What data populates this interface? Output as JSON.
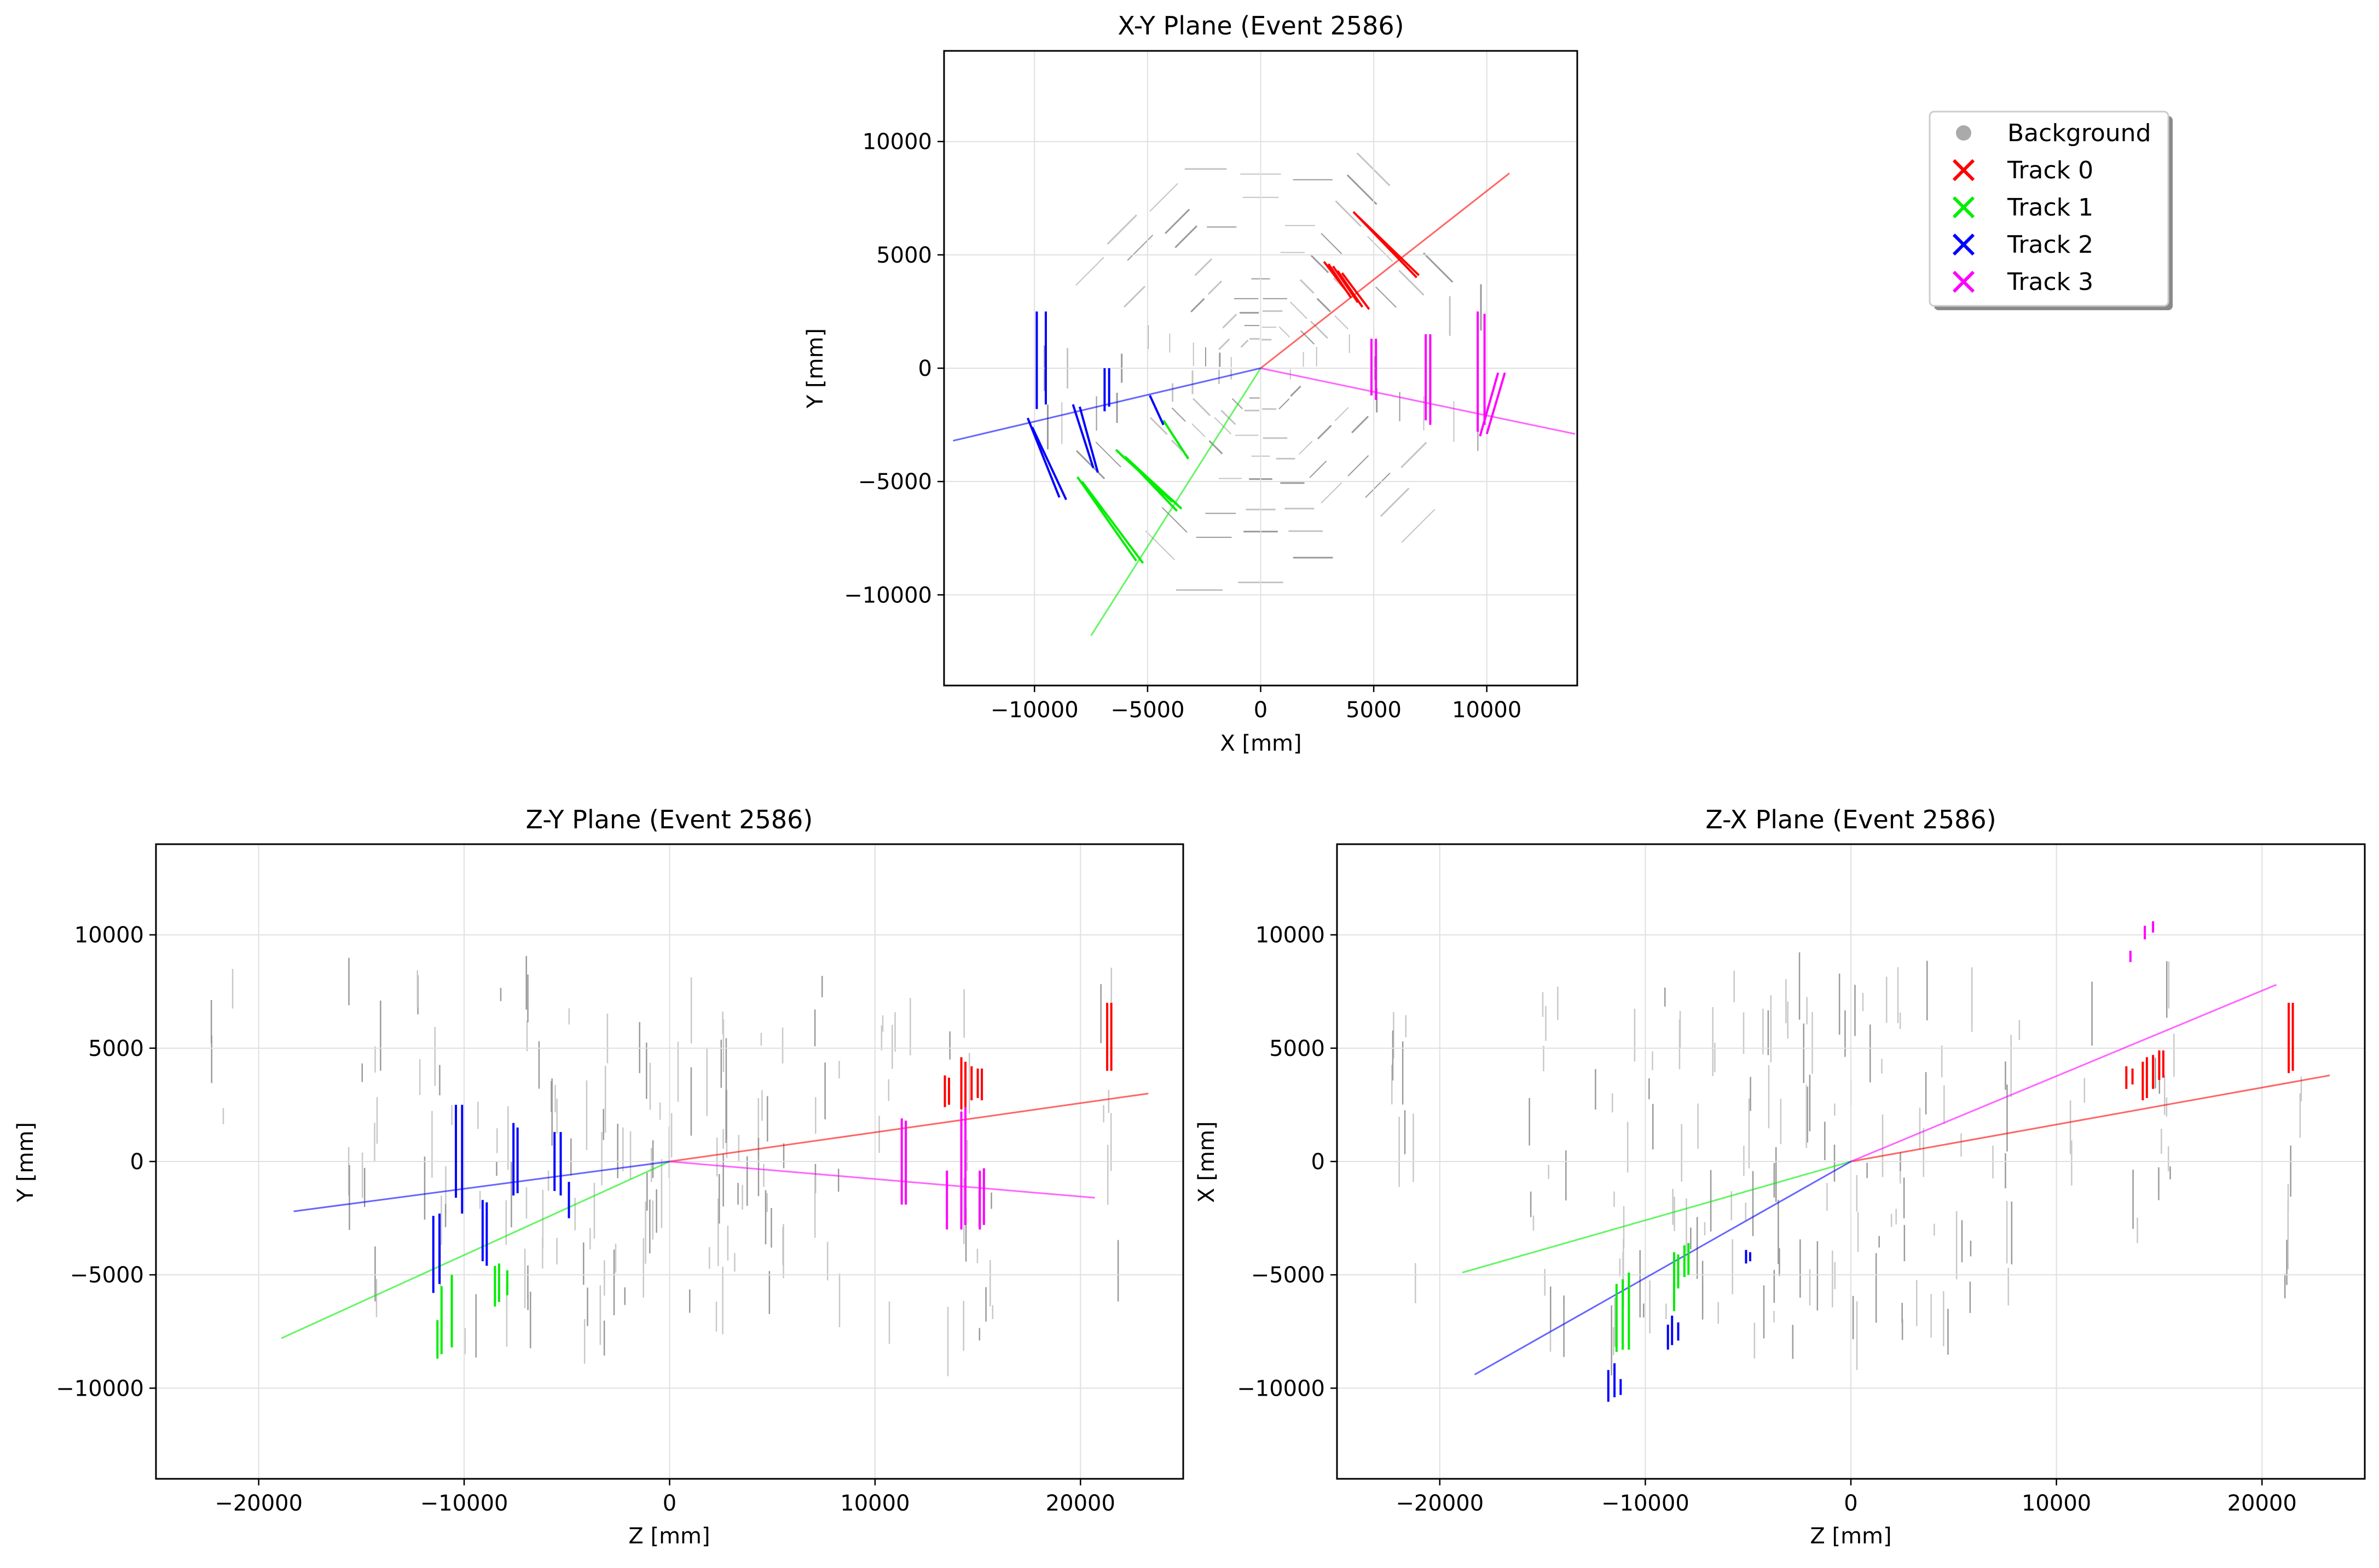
{
  "chart_data": [
    {
      "id": "xy",
      "type": "scatter",
      "title": "X-Y Plane (Event 2586)",
      "xlabel": "X [mm]",
      "ylabel": "Y [mm]",
      "xlim": [
        -14000,
        14000
      ],
      "ylim": [
        -14000,
        14000
      ],
      "xticks": [
        -10000,
        -5000,
        0,
        5000,
        10000
      ],
      "yticks": [
        -10000,
        -5000,
        0,
        5000,
        10000
      ],
      "grid": true,
      "legend": {
        "placement": "outside-right",
        "entries": [
          {
            "label": "Background",
            "color": "#aaaaaa",
            "marker": "circle"
          },
          {
            "label": "Track 0",
            "color": "#ff0000",
            "marker": "x"
          },
          {
            "label": "Track 1",
            "color": "#00ee00",
            "marker": "x"
          },
          {
            "label": "Track 2",
            "color": "#0000ff",
            "marker": "x"
          },
          {
            "label": "Track 3",
            "color": "#ff00ff",
            "marker": "x"
          }
        ]
      },
      "track_lines": [
        {
          "name": "Track 0",
          "color": "#ff0000",
          "x": [
            0,
            11000
          ],
          "y": [
            0,
            8600
          ]
        },
        {
          "name": "Track 1",
          "color": "#00ee00",
          "x": [
            0,
            -7500
          ],
          "y": [
            0,
            -11800
          ]
        },
        {
          "name": "Track 2",
          "color": "#0000ff",
          "x": [
            0,
            -13600
          ],
          "y": [
            0,
            -3200
          ]
        },
        {
          "name": "Track 3",
          "color": "#ff00ff",
          "x": [
            0,
            13900
          ],
          "y": [
            0,
            -2900
          ]
        }
      ],
      "track_hits": [
        {
          "name": "Track 0",
          "color": "#ff0000",
          "segments": [
            [
              4100,
              6900,
              6900,
              4000
            ],
            [
              4300,
              6700,
              7000,
              4100
            ],
            [
              2800,
              4700,
              3800,
              3400
            ],
            [
              3000,
              4600,
              4000,
              3100
            ],
            [
              3200,
              4500,
              4300,
              2900
            ],
            [
              3400,
              4300,
              4500,
              2700
            ],
            [
              3600,
              4200,
              4800,
              2600
            ]
          ]
        },
        {
          "name": "Track 1",
          "color": "#00ee00",
          "segments": [
            [
              -8100,
              -4800,
              -5500,
              -8500
            ],
            [
              -7900,
              -5000,
              -5200,
              -8600
            ],
            [
              -6400,
              -3600,
              -3900,
              -5900
            ],
            [
              -6200,
              -3800,
              -3700,
              -6000
            ],
            [
              -6000,
              -3900,
              -3500,
              -6200
            ],
            [
              -5800,
              -4100,
              -3700,
              -6300
            ],
            [
              -4300,
              -2300,
              -3200,
              -4000
            ]
          ]
        },
        {
          "name": "Track 2",
          "color": "#0000ff",
          "segments": [
            [
              -9900,
              2500,
              -9900,
              -1800
            ],
            [
              -9500,
              2500,
              -9500,
              -1600
            ],
            [
              -10300,
              -2200,
              -8900,
              -5700
            ],
            [
              -10100,
              -2600,
              -8600,
              -5800
            ],
            [
              -8300,
              -1600,
              -7400,
              -4400
            ],
            [
              -8000,
              -1700,
              -7200,
              -4600
            ],
            [
              -6900,
              0,
              -6900,
              -1900
            ],
            [
              -6700,
              0,
              -6700,
              -1700
            ],
            [
              -4900,
              -1200,
              -4300,
              -2500
            ]
          ]
        },
        {
          "name": "Track 3",
          "color": "#ff00ff",
          "segments": [
            [
              9600,
              2500,
              9600,
              -2800
            ],
            [
              9900,
              2400,
              9900,
              -2500
            ],
            [
              10800,
              -200,
              10000,
              -2900
            ],
            [
              10500,
              -200,
              9700,
              -3000
            ],
            [
              7500,
              1500,
              7500,
              -2500
            ],
            [
              7300,
              1500,
              7300,
              -2300
            ],
            [
              5100,
              1300,
              5100,
              -1400
            ],
            [
              4900,
              1300,
              4900,
              -1200
            ]
          ]
        }
      ]
    },
    {
      "id": "zy",
      "type": "scatter",
      "title": "Z-Y Plane (Event 2586)",
      "xlabel": "Z [mm]",
      "ylabel": "Y [mm]",
      "xlim": [
        -25000,
        25000
      ],
      "ylim": [
        -14000,
        14000
      ],
      "xticks": [
        -20000,
        -10000,
        0,
        10000,
        20000
      ],
      "yticks": [
        -10000,
        -5000,
        0,
        5000,
        10000
      ],
      "grid": true,
      "track_lines": [
        {
          "name": "Track 0",
          "color": "#ff0000",
          "x": [
            0,
            23300
          ],
          "y": [
            0,
            3000
          ]
        },
        {
          "name": "Track 1",
          "color": "#00ee00",
          "x": [
            0,
            -18900
          ],
          "y": [
            0,
            -7800
          ]
        },
        {
          "name": "Track 2",
          "color": "#0000ff",
          "x": [
            0,
            -18300
          ],
          "y": [
            0,
            -2200
          ]
        },
        {
          "name": "Track 3",
          "color": "#ff00ff",
          "x": [
            0,
            20700
          ],
          "y": [
            0,
            -1600
          ]
        }
      ],
      "track_hits": [
        {
          "name": "Track 0",
          "color": "#ff0000",
          "segments": [
            [
              21300,
              7000,
              21300,
              4000
            ],
            [
              21500,
              7000,
              21500,
              4000
            ],
            [
              13400,
              3800,
              13400,
              2400
            ],
            [
              13600,
              3700,
              13600,
              2500
            ],
            [
              14200,
              4600,
              14200,
              2300
            ],
            [
              14400,
              4400,
              14400,
              2400
            ],
            [
              14700,
              4200,
              14700,
              2700
            ],
            [
              15000,
              4100,
              15000,
              2800
            ],
            [
              15200,
              4100,
              15200,
              2700
            ]
          ]
        },
        {
          "name": "Track 1",
          "color": "#00ee00",
          "segments": [
            [
              -11300,
              -7000,
              -11300,
              -8700
            ],
            [
              -11100,
              -5500,
              -11100,
              -8500
            ],
            [
              -10600,
              -5000,
              -10600,
              -8200
            ],
            [
              -8500,
              -4600,
              -8500,
              -6400
            ],
            [
              -8300,
              -4500,
              -8300,
              -6200
            ],
            [
              -7900,
              -4800,
              -7900,
              -5900
            ]
          ]
        },
        {
          "name": "Track 2",
          "color": "#0000ff",
          "segments": [
            [
              -11500,
              -2400,
              -11500,
              -5800
            ],
            [
              -11200,
              -2300,
              -11200,
              -5400
            ],
            [
              -10400,
              2500,
              -10400,
              -1600
            ],
            [
              -10100,
              2500,
              -10100,
              -2300
            ],
            [
              -9100,
              -1700,
              -9100,
              -4400
            ],
            [
              -8900,
              -1800,
              -8900,
              -4600
            ],
            [
              -7600,
              1700,
              -7600,
              -1500
            ],
            [
              -7400,
              1500,
              -7400,
              -1400
            ],
            [
              -5600,
              1300,
              -5600,
              -1300
            ],
            [
              -5300,
              1300,
              -5300,
              -1500
            ],
            [
              -4900,
              -900,
              -4900,
              -2500
            ]
          ]
        },
        {
          "name": "Track 3",
          "color": "#ff00ff",
          "segments": [
            [
              11300,
              1900,
              11300,
              -1900
            ],
            [
              11500,
              1800,
              11500,
              -1900
            ],
            [
              13500,
              -400,
              13500,
              -3000
            ],
            [
              14200,
              2200,
              14200,
              -3000
            ],
            [
              14400,
              2400,
              14400,
              -2800
            ],
            [
              15100,
              -400,
              15100,
              -3000
            ],
            [
              15300,
              -300,
              15300,
              -2800
            ]
          ]
        }
      ]
    },
    {
      "id": "zx",
      "type": "scatter",
      "title": "Z-X Plane (Event 2586)",
      "xlabel": "Z [mm]",
      "ylabel": "X [mm]",
      "xlim": [
        -25000,
        25000
      ],
      "ylim": [
        -14000,
        14000
      ],
      "xticks": [
        -20000,
        -10000,
        0,
        10000,
        20000
      ],
      "yticks": [
        -10000,
        -5000,
        0,
        5000,
        10000
      ],
      "grid": true,
      "track_lines": [
        {
          "name": "Track 0",
          "color": "#ff0000",
          "x": [
            0,
            23300
          ],
          "y": [
            0,
            3800
          ]
        },
        {
          "name": "Track 1",
          "color": "#00ee00",
          "x": [
            0,
            -18900
          ],
          "y": [
            0,
            -4900
          ]
        },
        {
          "name": "Track 2",
          "color": "#0000ff",
          "x": [
            0,
            -18300
          ],
          "y": [
            0,
            -9400
          ]
        },
        {
          "name": "Track 3",
          "color": "#ff00ff",
          "x": [
            0,
            20700
          ],
          "y": [
            0,
            7800
          ]
        }
      ],
      "track_hits": [
        {
          "name": "Track 0",
          "color": "#ff0000",
          "segments": [
            [
              21300,
              7000,
              21300,
              3900
            ],
            [
              21500,
              7000,
              21500,
              4000
            ],
            [
              13400,
              4200,
              13400,
              3200
            ],
            [
              13700,
              4100,
              13700,
              3400
            ],
            [
              14200,
              4400,
              14200,
              2700
            ],
            [
              14400,
              4600,
              14400,
              2800
            ],
            [
              14700,
              4700,
              14700,
              3200
            ],
            [
              15000,
              4900,
              15000,
              3600
            ],
            [
              15200,
              4900,
              15200,
              3700
            ]
          ]
        },
        {
          "name": "Track 1",
          "color": "#00ee00",
          "segments": [
            [
              -11400,
              -5400,
              -11400,
              -8400
            ],
            [
              -11100,
              -5200,
              -11100,
              -8300
            ],
            [
              -10800,
              -4900,
              -10800,
              -8300
            ],
            [
              -8600,
              -4000,
              -8600,
              -6600
            ],
            [
              -8400,
              -4100,
              -8400,
              -5600
            ],
            [
              -8100,
              -3700,
              -8100,
              -5100
            ],
            [
              -7900,
              -3600,
              -7900,
              -5000
            ]
          ]
        },
        {
          "name": "Track 2",
          "color": "#0000ff",
          "segments": [
            [
              -11800,
              -9200,
              -11800,
              -10600
            ],
            [
              -11500,
              -8900,
              -11500,
              -10400
            ],
            [
              -11200,
              -9600,
              -11200,
              -10300
            ],
            [
              -8900,
              -7200,
              -8900,
              -8300
            ],
            [
              -8700,
              -6800,
              -8700,
              -8100
            ],
            [
              -8400,
              -7100,
              -8400,
              -7900
            ],
            [
              -5100,
              -3900,
              -5100,
              -4500
            ],
            [
              -4900,
              -4000,
              -4900,
              -4400
            ]
          ]
        },
        {
          "name": "Track 3",
          "color": "#ff00ff",
          "segments": [
            [
              13600,
              9300,
              13600,
              8800
            ],
            [
              14300,
              10400,
              14300,
              9800
            ],
            [
              14700,
              10600,
              14700,
              10100
            ]
          ]
        }
      ]
    }
  ]
}
